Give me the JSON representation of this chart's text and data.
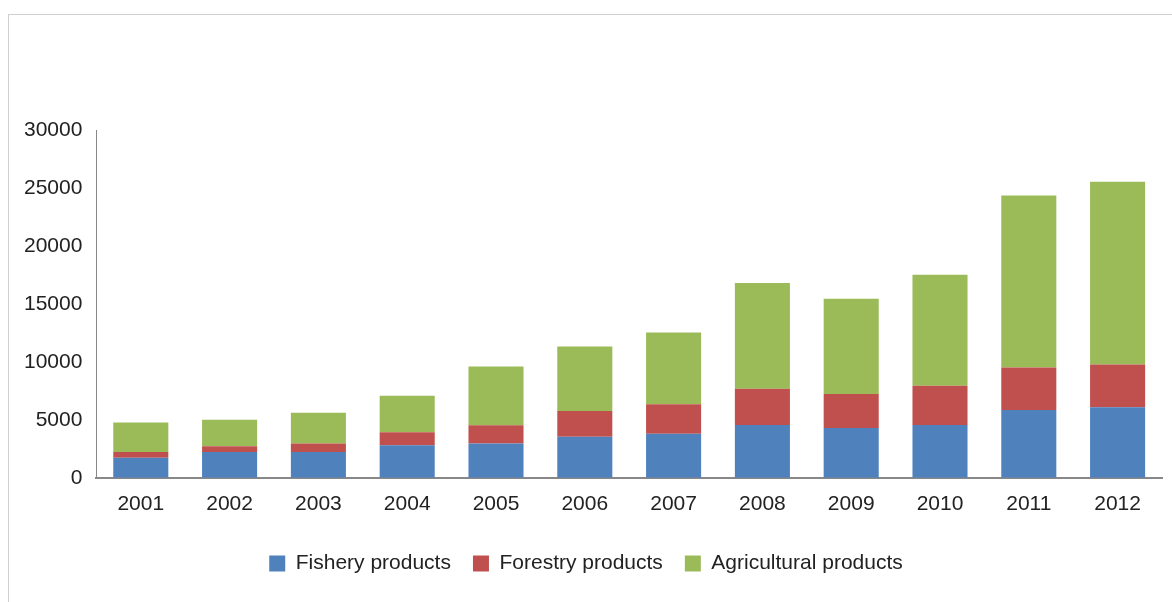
{
  "chart_data": {
    "type": "bar",
    "stacked": true,
    "legend": "bottom",
    "grid": false,
    "categories": [
      "2001",
      "2002",
      "2003",
      "2004",
      "2005",
      "2006",
      "2007",
      "2008",
      "2009",
      "2010",
      "2011",
      "2012"
    ],
    "ylim": [
      0,
      30000
    ],
    "yticks": [
      0,
      5000,
      10000,
      15000,
      20000,
      25000,
      30000
    ],
    "series": [
      {
        "name": "Fishery products",
        "color": "#4f81bd",
        "values": [
          1740,
          2220,
          2220,
          2810,
          2960,
          3540,
          3800,
          4550,
          4290,
          4550,
          5840,
          6090
        ]
      },
      {
        "name": "Forestry products",
        "color": "#c0504d",
        "values": [
          480,
          500,
          740,
          1120,
          1580,
          2220,
          2550,
          3130,
          2940,
          3380,
          3670,
          3680
        ]
      },
      {
        "name": "Agricultural products",
        "color": "#9bbb59",
        "values": [
          2540,
          2290,
          2650,
          3140,
          5060,
          5560,
          6190,
          9120,
          8220,
          9580,
          14840,
          15770
        ]
      }
    ]
  }
}
